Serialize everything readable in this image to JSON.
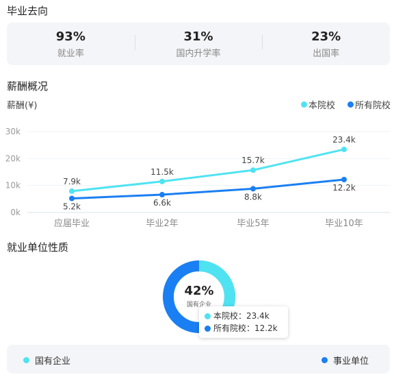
{
  "sections": {
    "destination": "毕业去向",
    "salary": "薪酬概况",
    "employer": "就业单位性质"
  },
  "stats": [
    {
      "value": "93%",
      "label": "就业率"
    },
    {
      "value": "31%",
      "label": "国内升学率"
    },
    {
      "value": "23%",
      "label": "出国率"
    }
  ],
  "colors": {
    "this_school": "#4fe3f2",
    "all_schools": "#1a7ff2"
  },
  "chart_data": {
    "type": "line",
    "ylabel": "薪酬(¥)",
    "categories": [
      "应届毕业",
      "毕业2年",
      "毕业5年",
      "毕业10年"
    ],
    "y_ticks": [
      "0k",
      "10k",
      "20k",
      "30k"
    ],
    "ylim": [
      0,
      30
    ],
    "grid": true,
    "legend_position": "top-right",
    "series": [
      {
        "name": "本院校",
        "values": [
          7.9,
          11.5,
          15.7,
          23.4
        ],
        "labels": [
          "7.9k",
          "11.5k",
          "15.7k",
          "23.4k"
        ],
        "color": "#4fe3f2"
      },
      {
        "name": "所有院校",
        "values": [
          5.2,
          6.6,
          8.8,
          12.2
        ],
        "labels": [
          "5.2k",
          "6.6k",
          "8.8k",
          "12.2k"
        ],
        "color": "#1a7ff2"
      }
    ]
  },
  "donut": {
    "percent": "42%",
    "label": "国有企业",
    "fraction": 0.42
  },
  "tooltip": {
    "row1": "本院校：23.4k",
    "row2": "所有院校：12.2k"
  },
  "bottom_legend": {
    "item1": "国有企业",
    "item2": "事业单位"
  }
}
